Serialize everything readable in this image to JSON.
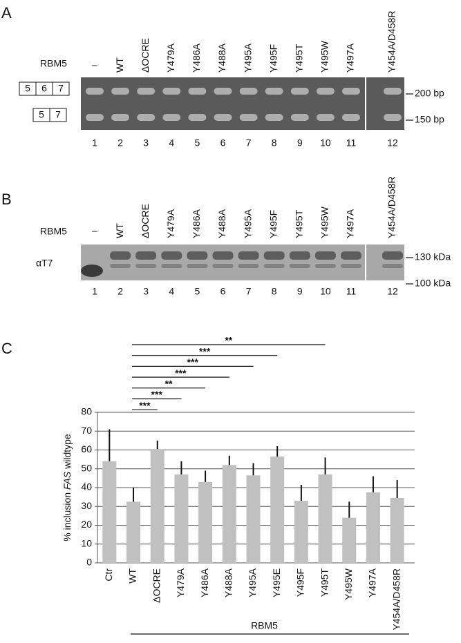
{
  "panel_a": {
    "label": "A",
    "row_label": "RBM5",
    "lanes": [
      "–",
      "WT",
      "ΔOCRE",
      "Y479A",
      "Y486A",
      "Y488A",
      "Y495A",
      "Y495F",
      "Y495T",
      "Y495W",
      "Y497A",
      "Y454A/D458R"
    ],
    "lane_numbers": [
      1,
      2,
      3,
      4,
      5,
      6,
      7,
      8,
      9,
      10,
      11,
      12
    ],
    "exons": [
      [
        "5",
        "6",
        "7"
      ],
      [
        "5",
        "7"
      ]
    ],
    "markers": [
      "200 bp",
      "150 bp"
    ]
  },
  "panel_b": {
    "label": "B",
    "row_label": "RBM5",
    "antibody": "αT7",
    "lanes": [
      "–",
      "WT",
      "ΔOCRE",
      "Y479A",
      "Y486A",
      "Y488A",
      "Y495A",
      "Y495F",
      "Y495T",
      "Y495W",
      "Y497A",
      "Y454A/D458R"
    ],
    "lane_numbers": [
      1,
      2,
      3,
      4,
      5,
      6,
      7,
      8,
      9,
      10,
      11,
      12
    ],
    "markers": [
      "130 kDa",
      "100 kDa"
    ]
  },
  "chart_data": {
    "type": "bar",
    "panel_label": "C",
    "y_label": [
      "% inclusion ",
      "FAS",
      " wildtype"
    ],
    "categories": [
      "Ctr",
      "WT",
      "ΔOCRE",
      "Y479A",
      "Y486A",
      "Y488A",
      "Y495A",
      "Y495E",
      "Y495F",
      "Y495T",
      "Y495W",
      "Y497A",
      "Y454A/D458R"
    ],
    "values": [
      54,
      32.5,
      60.5,
      47,
      43,
      52,
      46.5,
      56.5,
      33,
      47,
      24,
      37.5,
      34.5
    ],
    "errors": [
      17,
      7.5,
      4.5,
      7,
      6,
      5,
      6.5,
      5.5,
      8.5,
      9,
      8.5,
      8.5,
      9.5
    ],
    "color": "#c0c0c0",
    "ylim": [
      0,
      80
    ],
    "yticks": [
      0,
      10,
      20,
      30,
      40,
      50,
      60,
      70,
      80
    ],
    "grid": true,
    "group_label": "RBM5",
    "significance": [
      {
        "reference": "WT",
        "category": "Y495T",
        "label": "**"
      },
      {
        "reference": "WT",
        "category": "Y495E",
        "label": "***"
      },
      {
        "reference": "WT",
        "category": "Y495A",
        "label": "***"
      },
      {
        "reference": "WT",
        "category": "Y488A",
        "label": "***"
      },
      {
        "reference": "WT",
        "category": "Y486A",
        "label": "**"
      },
      {
        "reference": "WT",
        "category": "Y479A",
        "label": "***"
      },
      {
        "reference": "WT",
        "category": "ΔOCRE",
        "label": "***"
      }
    ]
  }
}
